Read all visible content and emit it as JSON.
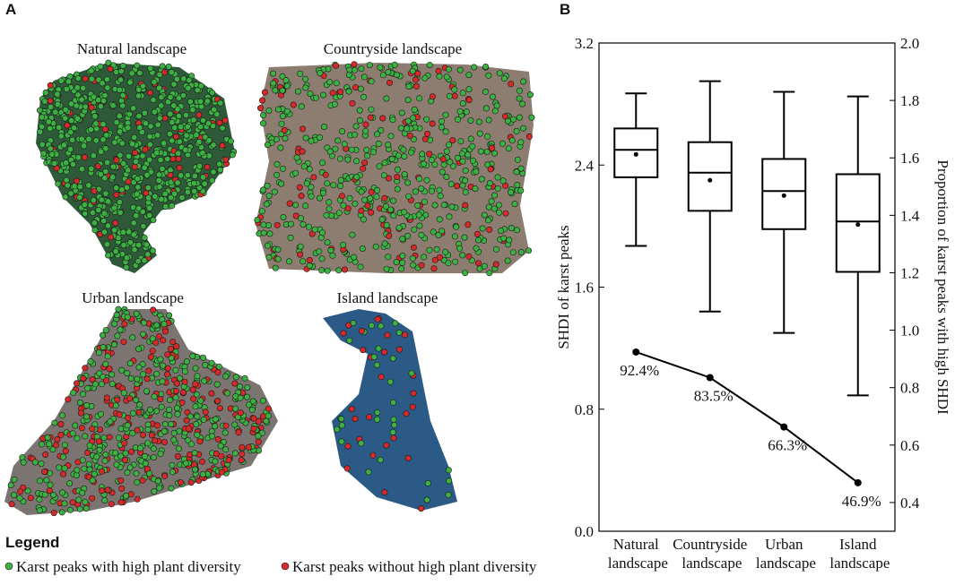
{
  "map_panel": {
    "label": "A",
    "titles": [
      "Natural landscape",
      "Countryside landscape",
      "Urban landscape",
      "Island landscape"
    ],
    "legend_title": "Legend",
    "legend_items": [
      {
        "label": "Karst peaks with high plant diversity",
        "color": "#3cb043"
      },
      {
        "label": "Karst peaks without high plant diversity",
        "color": "#d42a2a"
      }
    ]
  },
  "chart_data": {
    "panel_label": "B",
    "type": "box",
    "categories": [
      "Natural landscape",
      "Countryside landscape",
      "Urban landscape",
      "Island landscape"
    ],
    "boxes": [
      {
        "whislo": 1.87,
        "q1": 2.32,
        "med": 2.5,
        "q3": 2.64,
        "whishi": 2.87,
        "mean": 2.47
      },
      {
        "whislo": 1.44,
        "q1": 2.1,
        "med": 2.35,
        "q3": 2.55,
        "whishi": 2.95,
        "mean": 2.3
      },
      {
        "whislo": 1.3,
        "q1": 1.98,
        "med": 2.23,
        "q3": 2.44,
        "whishi": 2.88,
        "mean": 2.2
      },
      {
        "whislo": 0.89,
        "q1": 1.7,
        "med": 2.03,
        "q3": 2.34,
        "whishi": 2.85,
        "mean": 2.01
      }
    ],
    "ylabel": "SHDI of karst peaks",
    "ylim": [
      0,
      3.2
    ],
    "yticks": [
      {
        "value": 0,
        "label": "0.0"
      },
      0.8,
      1.6,
      2.4,
      3.2
    ],
    "y2label": "Proportion of karst peaks with high SHDI",
    "y2lim": [
      0.3,
      2.0
    ],
    "y2ticks": [
      0.4,
      0.6,
      0.8,
      {
        "value": 1,
        "label": "1.0"
      },
      1.2,
      1.4,
      1.6,
      1.8,
      {
        "value": 2,
        "label": "2.0"
      }
    ],
    "line": {
      "axis": "y2",
      "color": "#000000",
      "values": [
        0.924,
        0.835,
        0.663,
        0.469
      ],
      "value_labels": [
        "92.4%",
        "83.5%",
        "66.3%",
        "46.9%"
      ]
    }
  }
}
